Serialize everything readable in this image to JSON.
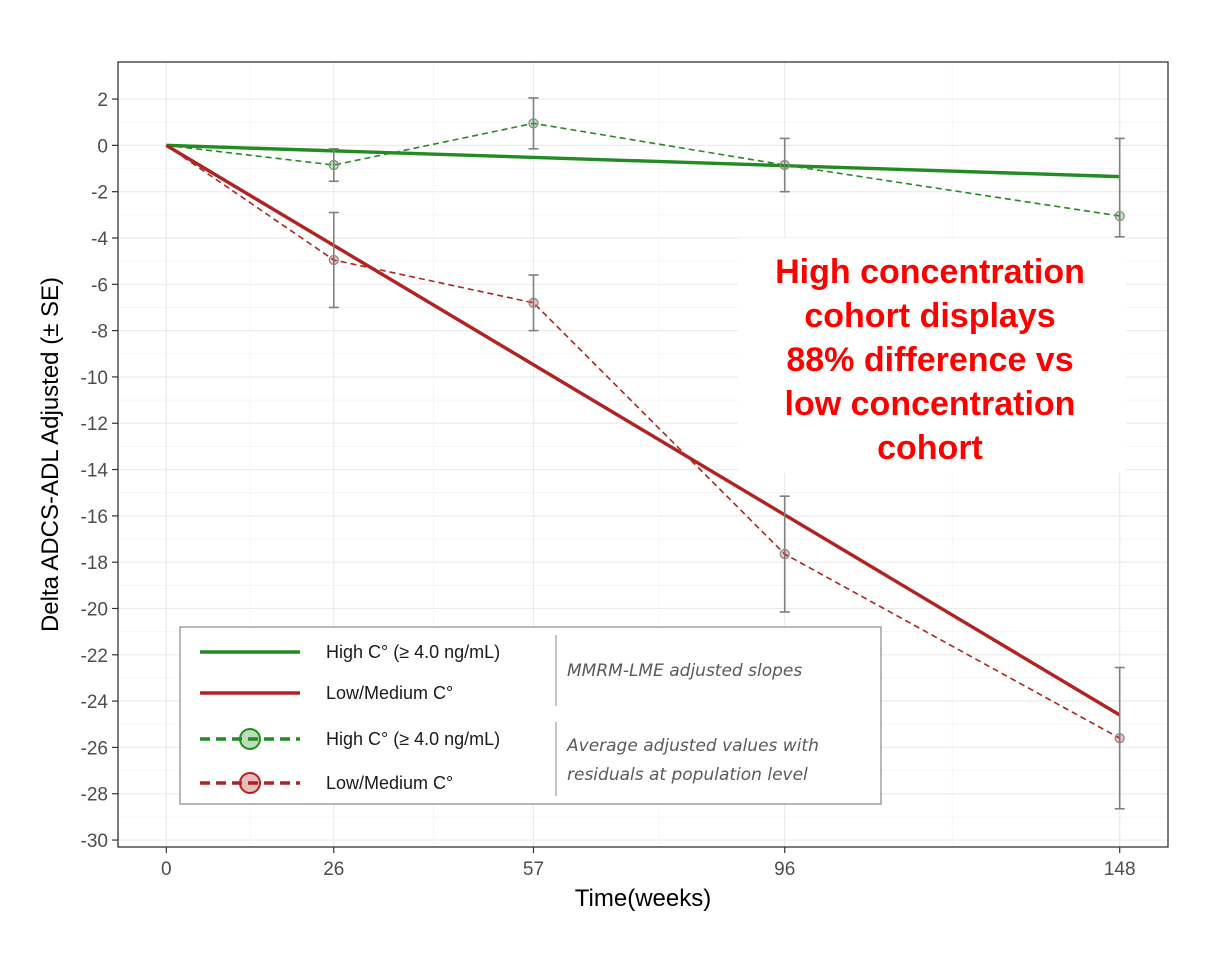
{
  "chart_data": {
    "type": "line",
    "xlabel": "Time(weeks)",
    "ylabel": "Delta ADCS-ADL Adjusted (± SE)",
    "x_ticks": [
      0,
      26,
      57,
      96,
      148
    ],
    "xlim": [
      -7.5,
      155.5
    ],
    "y_ticks": [
      2,
      0,
      -2,
      -4,
      -6,
      -8,
      -10,
      -12,
      -14,
      -16,
      -18,
      -20,
      -22,
      -24,
      -26,
      -28,
      -30
    ],
    "ylim": [
      -30.3,
      3.6
    ],
    "grid": true,
    "colors": {
      "high": "#228b22",
      "low": "#b22222"
    },
    "series": [
      {
        "name": "High C° (≥ 4.0 ng/mL)",
        "kind": "slope",
        "color": "#228b22",
        "x": [
          0,
          148
        ],
        "y": [
          0,
          -1.35
        ]
      },
      {
        "name": "Low/Medium C°",
        "kind": "slope",
        "color": "#b22222",
        "x": [
          0,
          148
        ],
        "y": [
          0,
          -24.6
        ]
      },
      {
        "name": "High C° (≥ 4.0 ng/mL)",
        "kind": "observed",
        "color": "#228b22",
        "x": [
          0,
          26,
          57,
          96,
          148
        ],
        "y": [
          0,
          -0.85,
          0.95,
          -0.85,
          -3.05
        ],
        "se_low": [
          null,
          -1.55,
          -0.15,
          -2.0,
          -3.95
        ],
        "se_high": [
          null,
          -0.15,
          2.05,
          0.3,
          0.3
        ]
      },
      {
        "name": "Low/Medium C°",
        "kind": "observed",
        "color": "#b22222",
        "x": [
          0,
          26,
          57,
          96,
          148
        ],
        "y": [
          0,
          -4.95,
          -6.8,
          -17.65,
          -25.6
        ],
        "se_low": [
          null,
          -7.0,
          -8.0,
          -20.15,
          -28.65
        ],
        "se_high": [
          null,
          -2.9,
          -5.6,
          -15.15,
          -22.55
        ]
      }
    ],
    "legend": {
      "position": "bottom-left",
      "items": [
        {
          "label": "High C° (≥ 4.0 ng/mL)",
          "color": "#228b22",
          "style": "solid"
        },
        {
          "label": "Low/Medium C°",
          "color": "#b22222",
          "style": "solid"
        },
        {
          "label": "High C° (≥ 4.0 ng/mL)",
          "color": "#228b22",
          "style": "dashed-marker"
        },
        {
          "label": "Low/Medium C°",
          "color": "#b22222",
          "style": "dashed-marker"
        }
      ],
      "group_notes": [
        {
          "lines": [
            "MMRM-LME adjusted slopes"
          ]
        },
        {
          "lines": [
            "Average adjusted values with",
            "residuals at population level"
          ]
        }
      ]
    },
    "annotation": {
      "lines": [
        "High concentration",
        "cohort displays",
        "88% difference vs",
        "low concentration",
        "cohort"
      ],
      "color": "#ff0000"
    }
  }
}
